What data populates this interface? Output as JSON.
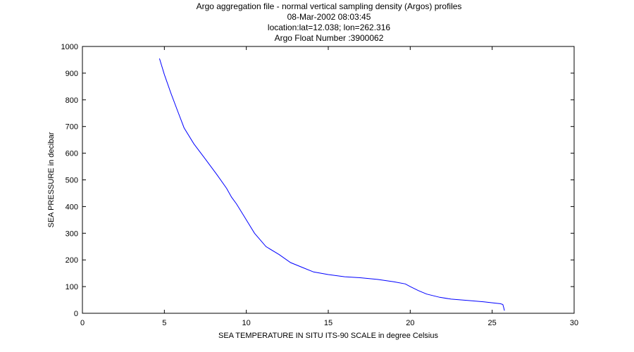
{
  "titles": [
    "Argo aggregation file - normal vertical sampling density (Argos) profiles",
    "08-Mar-2002 08:03:45",
    "location:lat=12.038; lon=262.316",
    "Argo Float Number :3900062"
  ],
  "colors": {
    "series": "#0000ff",
    "axes": "#000000",
    "background": "#ffffff"
  },
  "chart_data": {
    "type": "line",
    "title": "Argo aggregation file - normal vertical sampling density (Argos) profiles",
    "xlabel": "SEA TEMPERATURE IN SITU ITS-90 SCALE in degree Celsius",
    "ylabel": "SEA PRESSURE in decibar",
    "xlim": [
      0,
      30
    ],
    "ylim": [
      0,
      1000
    ],
    "xticks": [
      0,
      5,
      10,
      15,
      20,
      25,
      30
    ],
    "yticks": [
      0,
      100,
      200,
      300,
      400,
      500,
      600,
      700,
      800,
      900,
      1000
    ],
    "grid": false,
    "series": [
      {
        "x": [
          4.7,
          5.0,
          5.4,
          5.8,
          6.2,
          6.8,
          7.5,
          8.2,
          8.8,
          9.1,
          9.4,
          9.7,
          10.0,
          10.5,
          11.2,
          12.0,
          12.7,
          13.5,
          14.1,
          15.0,
          16.0,
          17.0,
          18.0,
          19.0,
          19.7,
          20.0,
          20.5,
          21.0,
          21.8,
          22.5,
          23.5,
          24.5,
          25.2,
          25.5,
          25.65,
          25.7,
          25.75
        ],
        "y": [
          955,
          895,
          825,
          760,
          695,
          635,
          578,
          520,
          468,
          435,
          410,
          380,
          350,
          300,
          250,
          220,
          190,
          170,
          155,
          145,
          137,
          133,
          127,
          118,
          110,
          100,
          85,
          72,
          60,
          53,
          48,
          43,
          38,
          36,
          33,
          22,
          10
        ]
      }
    ]
  }
}
